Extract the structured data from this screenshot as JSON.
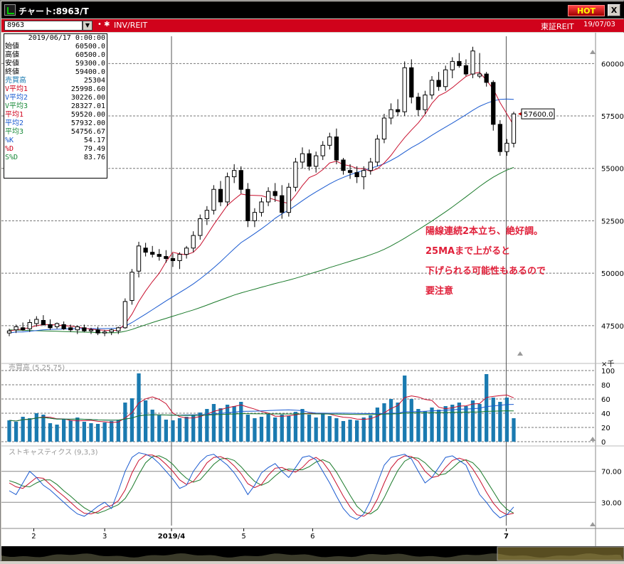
{
  "window": {
    "title": "チャート:8963/T",
    "hot_label": "HOT",
    "close_label": "X"
  },
  "infobar": {
    "symbol": "8963",
    "mark": "• ✱",
    "instrument": "INV/REIT",
    "market": "東証REIT",
    "date": "19/07/03"
  },
  "info_panel": {
    "datetime": "2019/06/17 0:00:00",
    "rows": [
      {
        "label": "始値",
        "value": "60500.0",
        "color": "#000000"
      },
      {
        "label": "高値",
        "value": "60500.0",
        "color": "#000000"
      },
      {
        "label": "安値",
        "value": "59300.0",
        "color": "#000000"
      },
      {
        "label": "終値",
        "value": "59400.0",
        "color": "#000000"
      },
      {
        "label": "売買高",
        "value": "25304",
        "color": "#1a7ab0"
      },
      {
        "label": "V平均1",
        "value": "25998.60",
        "color": "#d0021b"
      },
      {
        "label": "V平均2",
        "value": "30226.00",
        "color": "#1a5ad0"
      },
      {
        "label": "V平均3",
        "value": "28327.01",
        "color": "#1a8a3a"
      },
      {
        "label": "平均1",
        "value": "59520.00",
        "color": "#d0021b"
      },
      {
        "label": "平均2",
        "value": "57932.00",
        "color": "#1a5ad0"
      },
      {
        "label": "平均3",
        "value": "54756.67",
        "color": "#1a8a3a"
      },
      {
        "label": "%K",
        "value": "54.17",
        "color": "#1a5ad0"
      },
      {
        "label": "%D",
        "value": "79.49",
        "color": "#d0021b"
      },
      {
        "label": "S%D",
        "value": "83.76",
        "color": "#1a8a3a"
      }
    ]
  },
  "price_axis": {
    "ticks": [
      "60000",
      "57500",
      "55000",
      "52500",
      "50000",
      "47500"
    ],
    "current_price_label": "57600.0"
  },
  "annotation": {
    "lines": [
      "陽線連続2本立ち、絶好調。",
      "25MAまで上がると",
      "下げられる可能性もあるので",
      "要注意"
    ],
    "color": "#e0203a"
  },
  "volume_panel": {
    "label": "売買高 (5,25,75)",
    "unit": "×千",
    "ticks": [
      "100",
      "80",
      "60",
      "40",
      "20",
      "0"
    ]
  },
  "stoch_panel": {
    "label": "ストキャスティクス (9,3,3)",
    "ticks": [
      "70.00",
      "30.00"
    ]
  },
  "x_axis": {
    "labels": [
      "2",
      "3",
      "2019/4",
      "5",
      "6",
      "7"
    ]
  },
  "colors": {
    "ma_short": "#c8102e",
    "ma_mid": "#1a5ad0",
    "ma_long": "#1a7a2a",
    "volume_bar": "#1a7ab0",
    "candle": "#000000"
  },
  "chart_data": {
    "type": "candlestick",
    "y_range": [
      45800,
      61300
    ],
    "candles": [
      [
        47150,
        47350,
        47000,
        47250
      ],
      [
        47300,
        47550,
        47150,
        47450
      ],
      [
        47400,
        47650,
        47250,
        47300
      ],
      [
        47350,
        47800,
        47200,
        47650
      ],
      [
        47600,
        47950,
        47450,
        47800
      ],
      [
        47750,
        48000,
        47500,
        47550
      ],
      [
        47550,
        47800,
        47300,
        47400
      ],
      [
        47450,
        47650,
        47350,
        47600
      ],
      [
        47550,
        47700,
        47300,
        47350
      ],
      [
        47400,
        47550,
        47200,
        47300
      ],
      [
        47300,
        47500,
        47100,
        47450
      ],
      [
        47400,
        47550,
        47200,
        47250
      ],
      [
        47250,
        47400,
        47100,
        47300
      ],
      [
        47300,
        47450,
        47050,
        47150
      ],
      [
        47150,
        47300,
        47000,
        47200
      ],
      [
        47200,
        47350,
        47050,
        47300
      ],
      [
        47250,
        47450,
        47100,
        47400
      ],
      [
        47400,
        48800,
        47350,
        48650
      ],
      [
        48700,
        50200,
        48500,
        50050
      ],
      [
        50100,
        51500,
        49800,
        51300
      ],
      [
        51200,
        51450,
        50800,
        51000
      ],
      [
        51000,
        51300,
        50750,
        50900
      ],
      [
        50900,
        51150,
        50600,
        50800
      ],
      [
        50800,
        51100,
        50500,
        50700
      ],
      [
        50700,
        50950,
        50300,
        50600
      ],
      [
        50600,
        51000,
        50200,
        50900
      ],
      [
        50900,
        51300,
        50700,
        51200
      ],
      [
        51200,
        52000,
        51000,
        51800
      ],
      [
        51800,
        52800,
        51600,
        52600
      ],
      [
        52600,
        53200,
        52300,
        53000
      ],
      [
        53000,
        54200,
        52800,
        54000
      ],
      [
        54000,
        54400,
        53200,
        53400
      ],
      [
        53400,
        54800,
        53200,
        54600
      ],
      [
        54600,
        55200,
        54300,
        54900
      ],
      [
        54900,
        55100,
        53800,
        54000
      ],
      [
        54000,
        54300,
        52200,
        52500
      ],
      [
        52500,
        53100,
        52200,
        52900
      ],
      [
        52900,
        53600,
        52700,
        53400
      ],
      [
        53400,
        54100,
        53200,
        53900
      ],
      [
        53900,
        54300,
        53400,
        53700
      ],
      [
        53700,
        54200,
        52600,
        52900
      ],
      [
        52900,
        54300,
        52700,
        54100
      ],
      [
        54100,
        55500,
        53900,
        55300
      ],
      [
        55300,
        56000,
        55000,
        55700
      ],
      [
        55700,
        55900,
        54900,
        55100
      ],
      [
        55100,
        55800,
        54800,
        55600
      ],
      [
        55600,
        56300,
        55400,
        56100
      ],
      [
        56100,
        56700,
        55900,
        56500
      ],
      [
        56500,
        56900,
        55200,
        55400
      ],
      [
        55400,
        55500,
        54700,
        54900
      ],
      [
        54900,
        55200,
        54500,
        54800
      ],
      [
        54800,
        55100,
        54300,
        54600
      ],
      [
        54600,
        55100,
        54000,
        54900
      ],
      [
        54900,
        55500,
        54700,
        55300
      ],
      [
        55300,
        56600,
        55100,
        56400
      ],
      [
        56400,
        57600,
        56200,
        57400
      ],
      [
        57400,
        58100,
        57100,
        57800
      ],
      [
        57800,
        58300,
        57500,
        57700
      ],
      [
        57700,
        60100,
        57500,
        59800
      ],
      [
        59800,
        60200,
        58100,
        58400
      ],
      [
        58400,
        58600,
        57500,
        57800
      ],
      [
        57800,
        58700,
        57600,
        58500
      ],
      [
        58500,
        59400,
        58300,
        59200
      ],
      [
        59200,
        59600,
        58700,
        58900
      ],
      [
        58900,
        59900,
        58700,
        59700
      ],
      [
        59700,
        60300,
        59300,
        60100
      ],
      [
        60100,
        60500,
        59800,
        59900
      ],
      [
        59900,
        60200,
        59400,
        59500
      ],
      [
        59500,
        60800,
        59300,
        60600
      ],
      [
        59400,
        60500,
        59300,
        59500
      ],
      [
        59500,
        59600,
        58900,
        59100
      ],
      [
        59100,
        59200,
        56800,
        57100
      ],
      [
        57100,
        57300,
        55600,
        55800
      ],
      [
        55800,
        56400,
        55600,
        56200
      ],
      [
        56200,
        57700,
        56000,
        57600
      ]
    ],
    "ma_short": [
      47250,
      47300,
      47350,
      47400,
      47500,
      47550,
      47550,
      47530,
      47500,
      47480,
      47430,
      47380,
      47330,
      47300,
      47280,
      47270,
      47280,
      47580,
      48050,
      48650,
      49150,
      49600,
      50000,
      50550,
      51000,
      50920,
      50880,
      51000,
      51330,
      51820,
      52320,
      52780,
      53240,
      53520,
      53780,
      53720,
      53710,
      53700,
      53600,
      53500,
      53400,
      53330,
      53720,
      54180,
      54560,
      54700,
      54940,
      55260,
      55340,
      55180,
      55120,
      55000,
      54980,
      54860,
      54980,
      55260,
      55620,
      56060,
      56470,
      56830,
      57170,
      57580,
      58100,
      58460,
      58620,
      58850,
      59120,
      59380,
      59520,
      59580,
      59200,
      58780,
      58140,
      57600,
      57050
    ],
    "ma_mid": [
      47150,
      47200,
      47200,
      47230,
      47270,
      47300,
      47320,
      47330,
      47340,
      47350,
      47360,
      47360,
      47360,
      47360,
      47360,
      47370,
      47380,
      47480,
      47650,
      47850,
      48050,
      48260,
      48470,
      48680,
      48880,
      49080,
      49280,
      49490,
      49730,
      49990,
      50260,
      50550,
      50860,
      51170,
      51460,
      51670,
      51890,
      52120,
      52360,
      52620,
      52830,
      53010,
      53230,
      53460,
      53680,
      53880,
      54070,
      54260,
      54430,
      54570,
      54700,
      54810,
      54910,
      55000,
      55110,
      55220,
      55380,
      55560,
      55780,
      55990,
      56170,
      56370,
      56580,
      56780,
      56970,
      57160,
      57360,
      57560,
      57770,
      57960,
      58100,
      58220,
      58290,
      58310,
      58290
    ],
    "ma_long": [
      47300,
      47290,
      47280,
      47270,
      47260,
      47250,
      47240,
      47230,
      47220,
      47210,
      47200,
      47190,
      47180,
      47170,
      47160,
      47160,
      47170,
      47230,
      47320,
      47430,
      47540,
      47650,
      47750,
      47850,
      47950,
      48050,
      48150,
      48250,
      48360,
      48480,
      48600,
      48720,
      48840,
      48960,
      49060,
      49150,
      49240,
      49330,
      49420,
      49510,
      49590,
      49670,
      49760,
      49860,
      49960,
      50060,
      50160,
      50270,
      50370,
      50470,
      50570,
      50670,
      50770,
      50880,
      51000,
      51140,
      51300,
      51480,
      51670,
      51870,
      52070,
      52280,
      52490,
      52710,
      52930,
      53160,
      53400,
      53640,
      53890,
      54140,
      54370,
      54580,
      54760,
      54920,
      55050
    ],
    "volume": [
      30,
      28,
      35,
      33,
      40,
      38,
      26,
      24,
      32,
      30,
      34,
      28,
      26,
      25,
      27,
      29,
      31,
      55,
      61,
      96,
      58,
      45,
      37,
      31,
      30,
      33,
      35,
      38,
      41,
      46,
      53,
      47,
      52,
      50,
      56,
      38,
      33,
      35,
      39,
      34,
      38,
      36,
      42,
      46,
      38,
      34,
      40,
      36,
      33,
      29,
      31,
      30,
      34,
      37,
      48,
      54,
      60,
      55,
      93,
      60,
      46,
      43,
      48,
      45,
      50,
      52,
      55,
      50,
      58,
      53,
      95,
      62,
      56,
      62,
      33
    ],
    "stoch_k": [
      45,
      40,
      55,
      70,
      62,
      52,
      46,
      38,
      30,
      22,
      15,
      12,
      18,
      25,
      30,
      22,
      45,
      70,
      88,
      94,
      92,
      88,
      80,
      70,
      60,
      48,
      52,
      70,
      82,
      90,
      92,
      85,
      78,
      68,
      55,
      40,
      52,
      68,
      75,
      80,
      70,
      62,
      75,
      88,
      90,
      85,
      70,
      55,
      38,
      22,
      12,
      8,
      15,
      32,
      55,
      78,
      88,
      90,
      92,
      86,
      70,
      55,
      62,
      75,
      88,
      90,
      84,
      78,
      58,
      40,
      30,
      18,
      10,
      14,
      24
    ],
    "stoch_d": [
      55,
      50,
      48,
      55,
      62,
      61,
      53,
      45,
      38,
      30,
      22,
      16,
      15,
      18,
      24,
      26,
      32,
      46,
      68,
      84,
      91,
      91,
      87,
      79,
      70,
      59,
      53,
      57,
      68,
      81,
      88,
      89,
      85,
      77,
      67,
      54,
      49,
      53,
      65,
      74,
      75,
      71,
      69,
      75,
      84,
      88,
      82,
      70,
      54,
      38,
      24,
      14,
      12,
      18,
      34,
      55,
      74,
      85,
      90,
      89,
      83,
      70,
      62,
      64,
      75,
      84,
      87,
      84,
      73,
      59,
      43,
      29,
      19,
      14,
      16
    ],
    "stoch_sd": [
      58,
      55,
      51,
      50,
      55,
      59,
      59,
      53,
      45,
      38,
      30,
      23,
      18,
      16,
      19,
      23,
      27,
      35,
      49,
      66,
      81,
      89,
      90,
      86,
      79,
      69,
      61,
      56,
      59,
      69,
      79,
      86,
      87,
      84,
      76,
      66,
      57,
      52,
      56,
      64,
      71,
      73,
      72,
      72,
      76,
      82,
      85,
      81,
      69,
      54,
      39,
      25,
      17,
      15,
      21,
      36,
      54,
      71,
      83,
      88,
      87,
      81,
      72,
      65,
      67,
      74,
      82,
      85,
      81,
      72,
      58,
      44,
      30,
      21,
      16
    ]
  }
}
